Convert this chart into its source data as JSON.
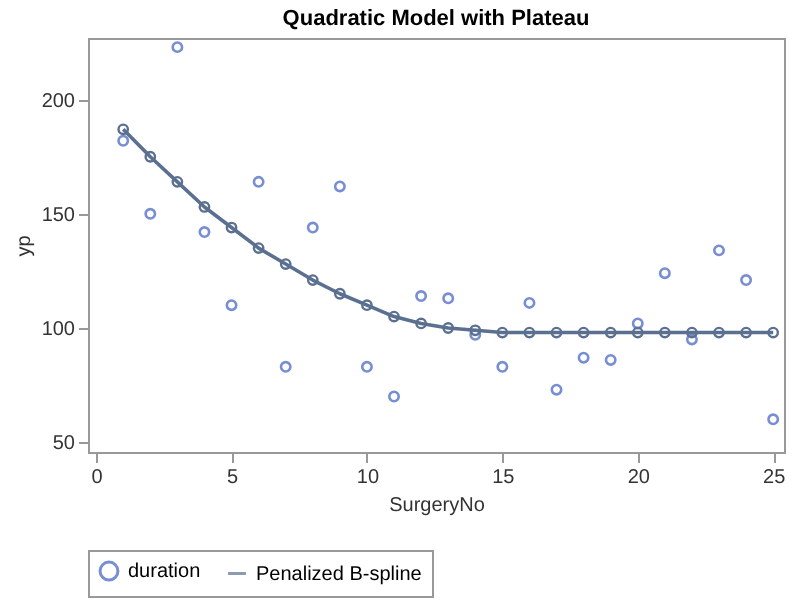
{
  "chart_data": {
    "type": "line",
    "title": "Quadratic Model with Plateau",
    "xlabel": "SurgeryNo",
    "ylabel": "yp",
    "x": [
      1,
      2,
      3,
      4,
      5,
      6,
      7,
      8,
      9,
      10,
      11,
      12,
      13,
      14,
      15,
      16,
      17,
      18,
      19,
      20,
      21,
      22,
      23,
      24,
      25
    ],
    "series": [
      {
        "name": "duration",
        "type": "scatter",
        "marker": "circle",
        "color": "#3f5fbf",
        "values": [
          182,
          150,
          223,
          142,
          110,
          164,
          83,
          144,
          162,
          83,
          70,
          114,
          113,
          97,
          83,
          111,
          73,
          87,
          86,
          102,
          124,
          95,
          134,
          121,
          60
        ]
      },
      {
        "name": "Penalized B-spline",
        "marker": "circle",
        "color": "#5b7090",
        "values": [
          187,
          175,
          164,
          153,
          144,
          135,
          128,
          121,
          115,
          110,
          105,
          102,
          100,
          99,
          98,
          98,
          98,
          98,
          98,
          98,
          98,
          98,
          98,
          98,
          98
        ]
      }
    ],
    "xlim": [
      -0.3,
      25.4
    ],
    "ylim": [
      45.7,
      227
    ],
    "xticks": [
      0,
      5,
      10,
      15,
      20,
      25
    ],
    "yticks": [
      50,
      100,
      150,
      200
    ],
    "grid": false,
    "legend": "bottom"
  }
}
